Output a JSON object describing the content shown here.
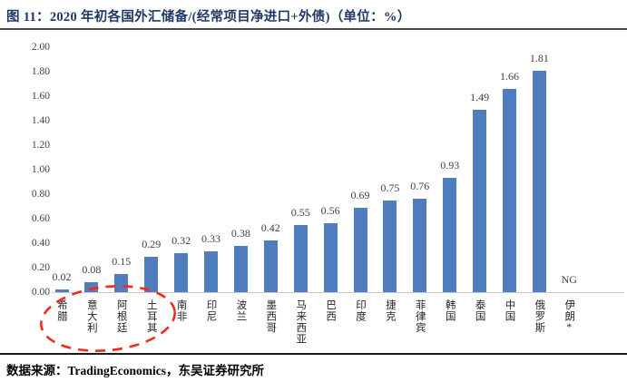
{
  "figure": {
    "title": "图 11：2020 年初各国外汇储备/(经常项目净进口+外债)（单位：%）",
    "source": "数据来源：TradingEconomics，东吴证券研究所"
  },
  "colors": {
    "bar": "#4F7DBE",
    "title_text": "#1F3864",
    "axis_line": "#C9C9C9",
    "tick_text": "#404040",
    "ellipse": "#F5281E",
    "top_rule": "#4D4D4D",
    "bottom_rule": "#1A1A1A"
  },
  "chart_data": {
    "type": "bar",
    "title": "2020 年初各国外汇储备/(经常项目净进口+外债)",
    "unit": "%",
    "categories": [
      "希腊",
      "意大利",
      "阿根廷",
      "土耳其",
      "南非",
      "印尼",
      "波兰",
      "墨西哥",
      "马来西亚",
      "巴西",
      "印度",
      "捷克",
      "菲律宾",
      "韩国",
      "泰国",
      "中国",
      "俄罗斯",
      "伊朗*"
    ],
    "values": [
      0.02,
      0.08,
      0.15,
      0.29,
      0.32,
      0.33,
      0.38,
      0.42,
      0.55,
      0.56,
      0.69,
      0.75,
      0.76,
      0.93,
      1.49,
      1.66,
      1.81,
      null
    ],
    "bar_labels": [
      "0.02",
      "0.08",
      "0.15",
      "0.29",
      "0.32",
      "0.33",
      "0.38",
      "0.42",
      "0.55",
      "0.56",
      "0.69",
      "0.75",
      "0.76",
      "0.93",
      "1.49",
      "1.66",
      "1.81",
      "NG"
    ],
    "ylim": [
      0,
      2.0
    ],
    "ytick_step": 0.2,
    "yticks": [
      "0.00",
      "0.20",
      "0.40",
      "0.60",
      "0.80",
      "1.00",
      "1.20",
      "1.40",
      "1.60",
      "1.80",
      "2.00"
    ],
    "grid": false,
    "legend": "none",
    "annotation": {
      "shape": "red-dashed-ellipse",
      "meaning": "circles lowest-ratio countries",
      "highlighted_categories": [
        "希腊",
        "意大利",
        "阿根廷",
        "土耳其"
      ]
    }
  }
}
